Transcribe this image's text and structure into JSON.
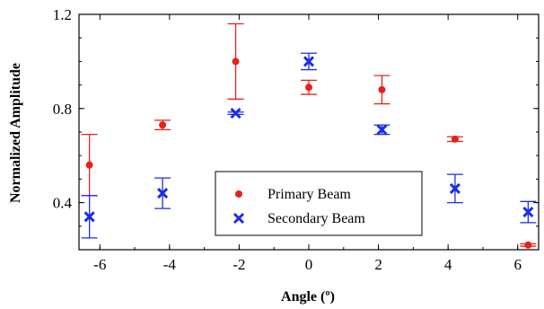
{
  "chart_data": {
    "type": "scatter",
    "xlabel": "Angle (º)",
    "ylabel": "Normalized Amplitude",
    "xlim": [
      -6.6,
      6.6
    ],
    "ylim": [
      0.2,
      1.2
    ],
    "xticks": [
      -6,
      -4,
      -2,
      0,
      2,
      4,
      6
    ],
    "xtick_labels": [
      "-6",
      "-4",
      "-2",
      "0",
      "2",
      "4",
      "6"
    ],
    "yticks": [
      0.4,
      0.8,
      1.2
    ],
    "ytick_labels": [
      "0.4",
      "0.8",
      "1.2"
    ],
    "legend_position": "lower-center",
    "series": [
      {
        "name": "Primary Beam",
        "marker": "circle",
        "color": "#e8201c",
        "points": [
          {
            "x": -6.3,
            "y": 0.56,
            "err": 0.13
          },
          {
            "x": -4.2,
            "y": 0.73,
            "err": 0.02
          },
          {
            "x": -2.1,
            "y": 1.0,
            "err": 0.16
          },
          {
            "x": 0.0,
            "y": 0.89,
            "err": 0.03
          },
          {
            "x": 2.1,
            "y": 0.88,
            "err": 0.06
          },
          {
            "x": 4.2,
            "y": 0.67,
            "err": 0.01
          },
          {
            "x": 6.3,
            "y": 0.22,
            "err": 0.005
          }
        ]
      },
      {
        "name": "Secondary Beam",
        "marker": "x",
        "color": "#1a2ee8",
        "points": [
          {
            "x": -6.3,
            "y": 0.34,
            "err": 0.09
          },
          {
            "x": -4.2,
            "y": 0.44,
            "err": 0.065
          },
          {
            "x": -2.1,
            "y": 0.78,
            "err": 0.005
          },
          {
            "x": 0.0,
            "y": 1.0,
            "err": 0.035
          },
          {
            "x": 2.1,
            "y": 0.71,
            "err": 0.02
          },
          {
            "x": 4.2,
            "y": 0.46,
            "err": 0.06
          },
          {
            "x": 6.3,
            "y": 0.36,
            "err": 0.045
          }
        ]
      }
    ]
  }
}
